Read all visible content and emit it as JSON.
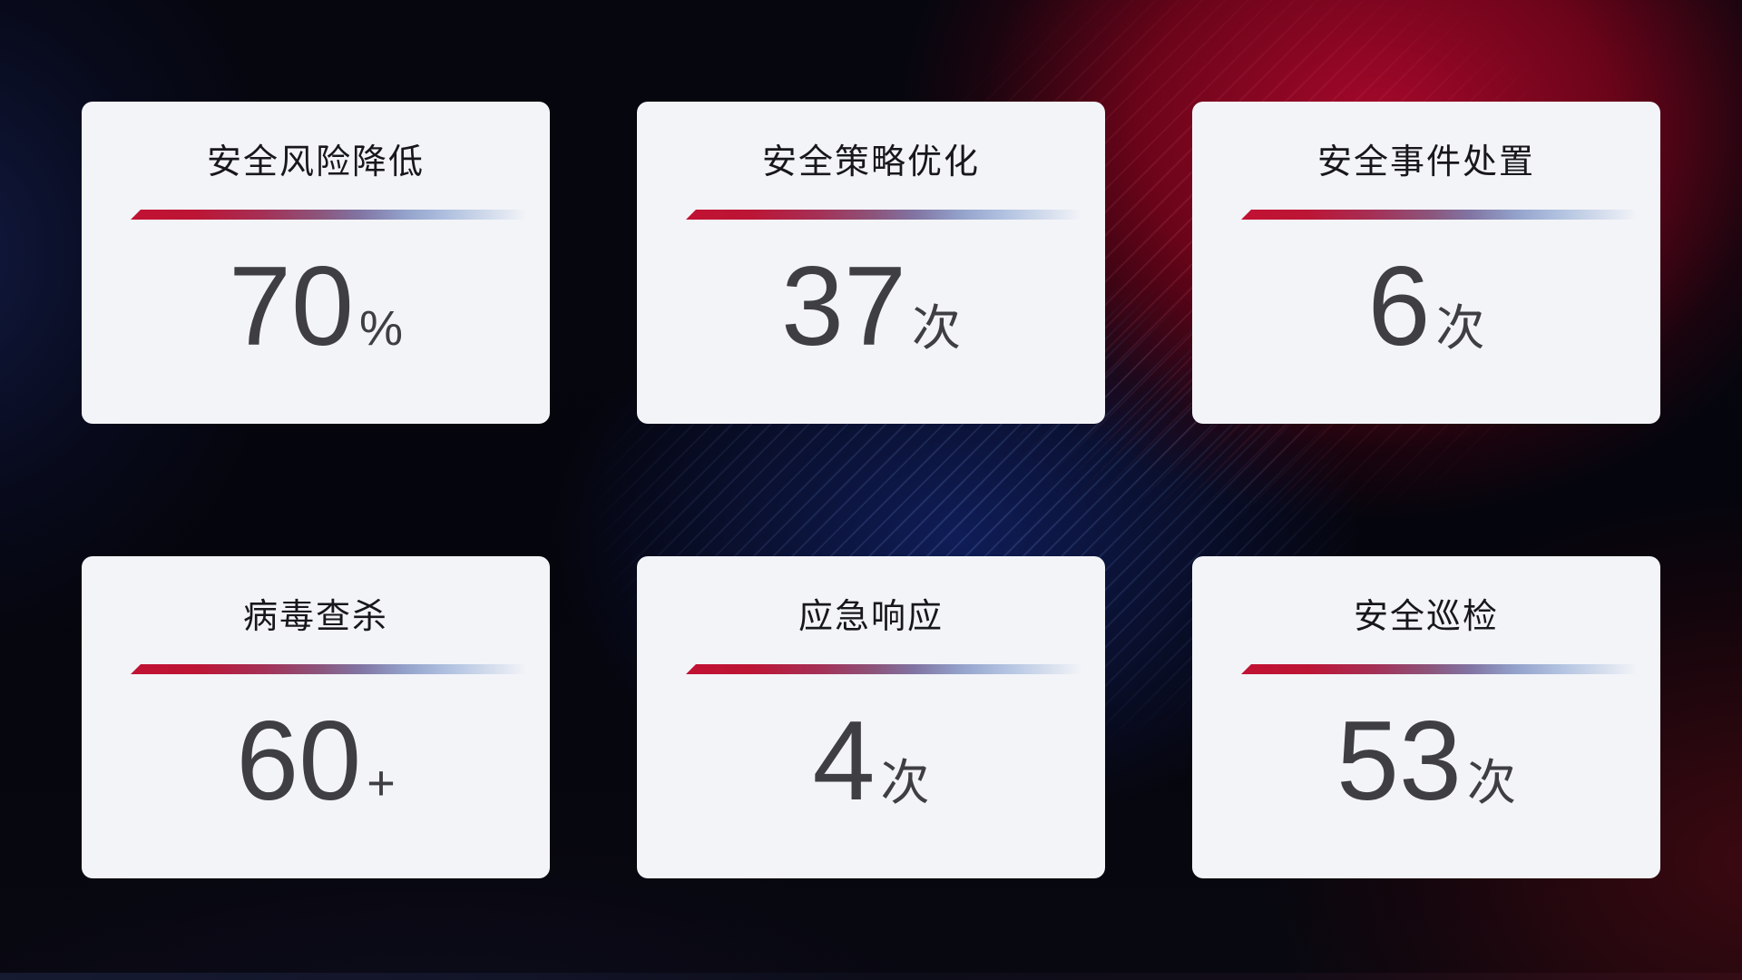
{
  "cards": [
    {
      "title": "安全风险降低",
      "value": "70",
      "unit": "%"
    },
    {
      "title": "安全策略优化",
      "value": "37",
      "unit": "次"
    },
    {
      "title": "安全事件处置",
      "value": "6",
      "unit": "次"
    },
    {
      "title": "病毒查杀",
      "value": "60",
      "unit": "+"
    },
    {
      "title": "应急响应",
      "value": "4",
      "unit": "次"
    },
    {
      "title": "安全巡检",
      "value": "53",
      "unit": "次"
    }
  ],
  "colors": {
    "card_background": "#f3f4f8",
    "title_text": "#17171c",
    "value_text": "#3e3e43",
    "accent_red": "#c11233",
    "accent_fade_blue": "#aebfdf",
    "background_base": "#04050e",
    "background_red_glow": "#ac082c",
    "background_navy_glow": "#112164",
    "background_maroon_corner": "#46090f"
  }
}
